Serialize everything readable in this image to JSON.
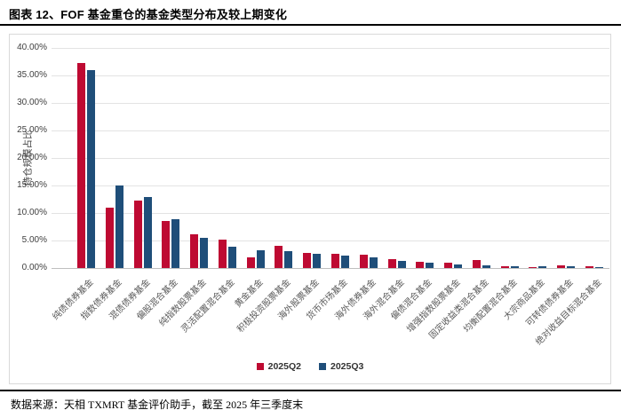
{
  "title": "图表 12、FOF 基金重仓的基金类型分布及较上期变化",
  "footer": {
    "source": "数据来源：天相 TXMRT 基金评价助手，截至 2025 年三季度末"
  },
  "colors": {
    "q2_red": "#BE0A32",
    "q3_blue": "#1F4E79",
    "grid": "#E3E3E3",
    "axis": "#BFBFBF",
    "tick_text": "#404040",
    "label_text": "#595959"
  },
  "chart_data": {
    "type": "bar",
    "title": "",
    "xlabel": "",
    "ylabel": "持仓规模占比",
    "ylim": [
      0,
      40
    ],
    "grid": true,
    "legend_position": "bottom",
    "yticks": [
      "40.00%",
      "35.00%",
      "30.00%",
      "25.00%",
      "20.00%",
      "15.00%",
      "10.00%",
      "5.00%",
      "0.00%"
    ],
    "categories": [
      "纯债债券基金",
      "指数债券基金",
      "混债债券基金",
      "偏股混合基金",
      "纯指数股票基金",
      "灵活配置混合基金",
      "黄金基金",
      "积极投资股票基金",
      "海外股票基金",
      "货币市场基金",
      "海外债券基金",
      "海外混合基金",
      "偏债混合基金",
      "增强指数股票基金",
      "固定收益类混合基金",
      "均衡配置混合基金",
      "大宗商品基金",
      "可转债债券基金",
      "绝对收益目标混合基金"
    ],
    "series": [
      {
        "name": "2025Q2",
        "color": "#BE0A32",
        "values": [
          37.2,
          11.0,
          12.3,
          8.5,
          6.2,
          5.2,
          1.9,
          4.0,
          2.8,
          2.5,
          2.4,
          1.6,
          1.1,
          0.9,
          1.4,
          0.3,
          0.1,
          0.5,
          0.3
        ]
      },
      {
        "name": "2025Q3",
        "color": "#1F4E79",
        "values": [
          35.9,
          15.0,
          12.9,
          8.9,
          5.5,
          3.8,
          3.3,
          3.0,
          2.5,
          2.2,
          2.0,
          1.3,
          1.0,
          0.6,
          0.5,
          0.4,
          0.3,
          0.3,
          0.1
        ]
      }
    ]
  }
}
